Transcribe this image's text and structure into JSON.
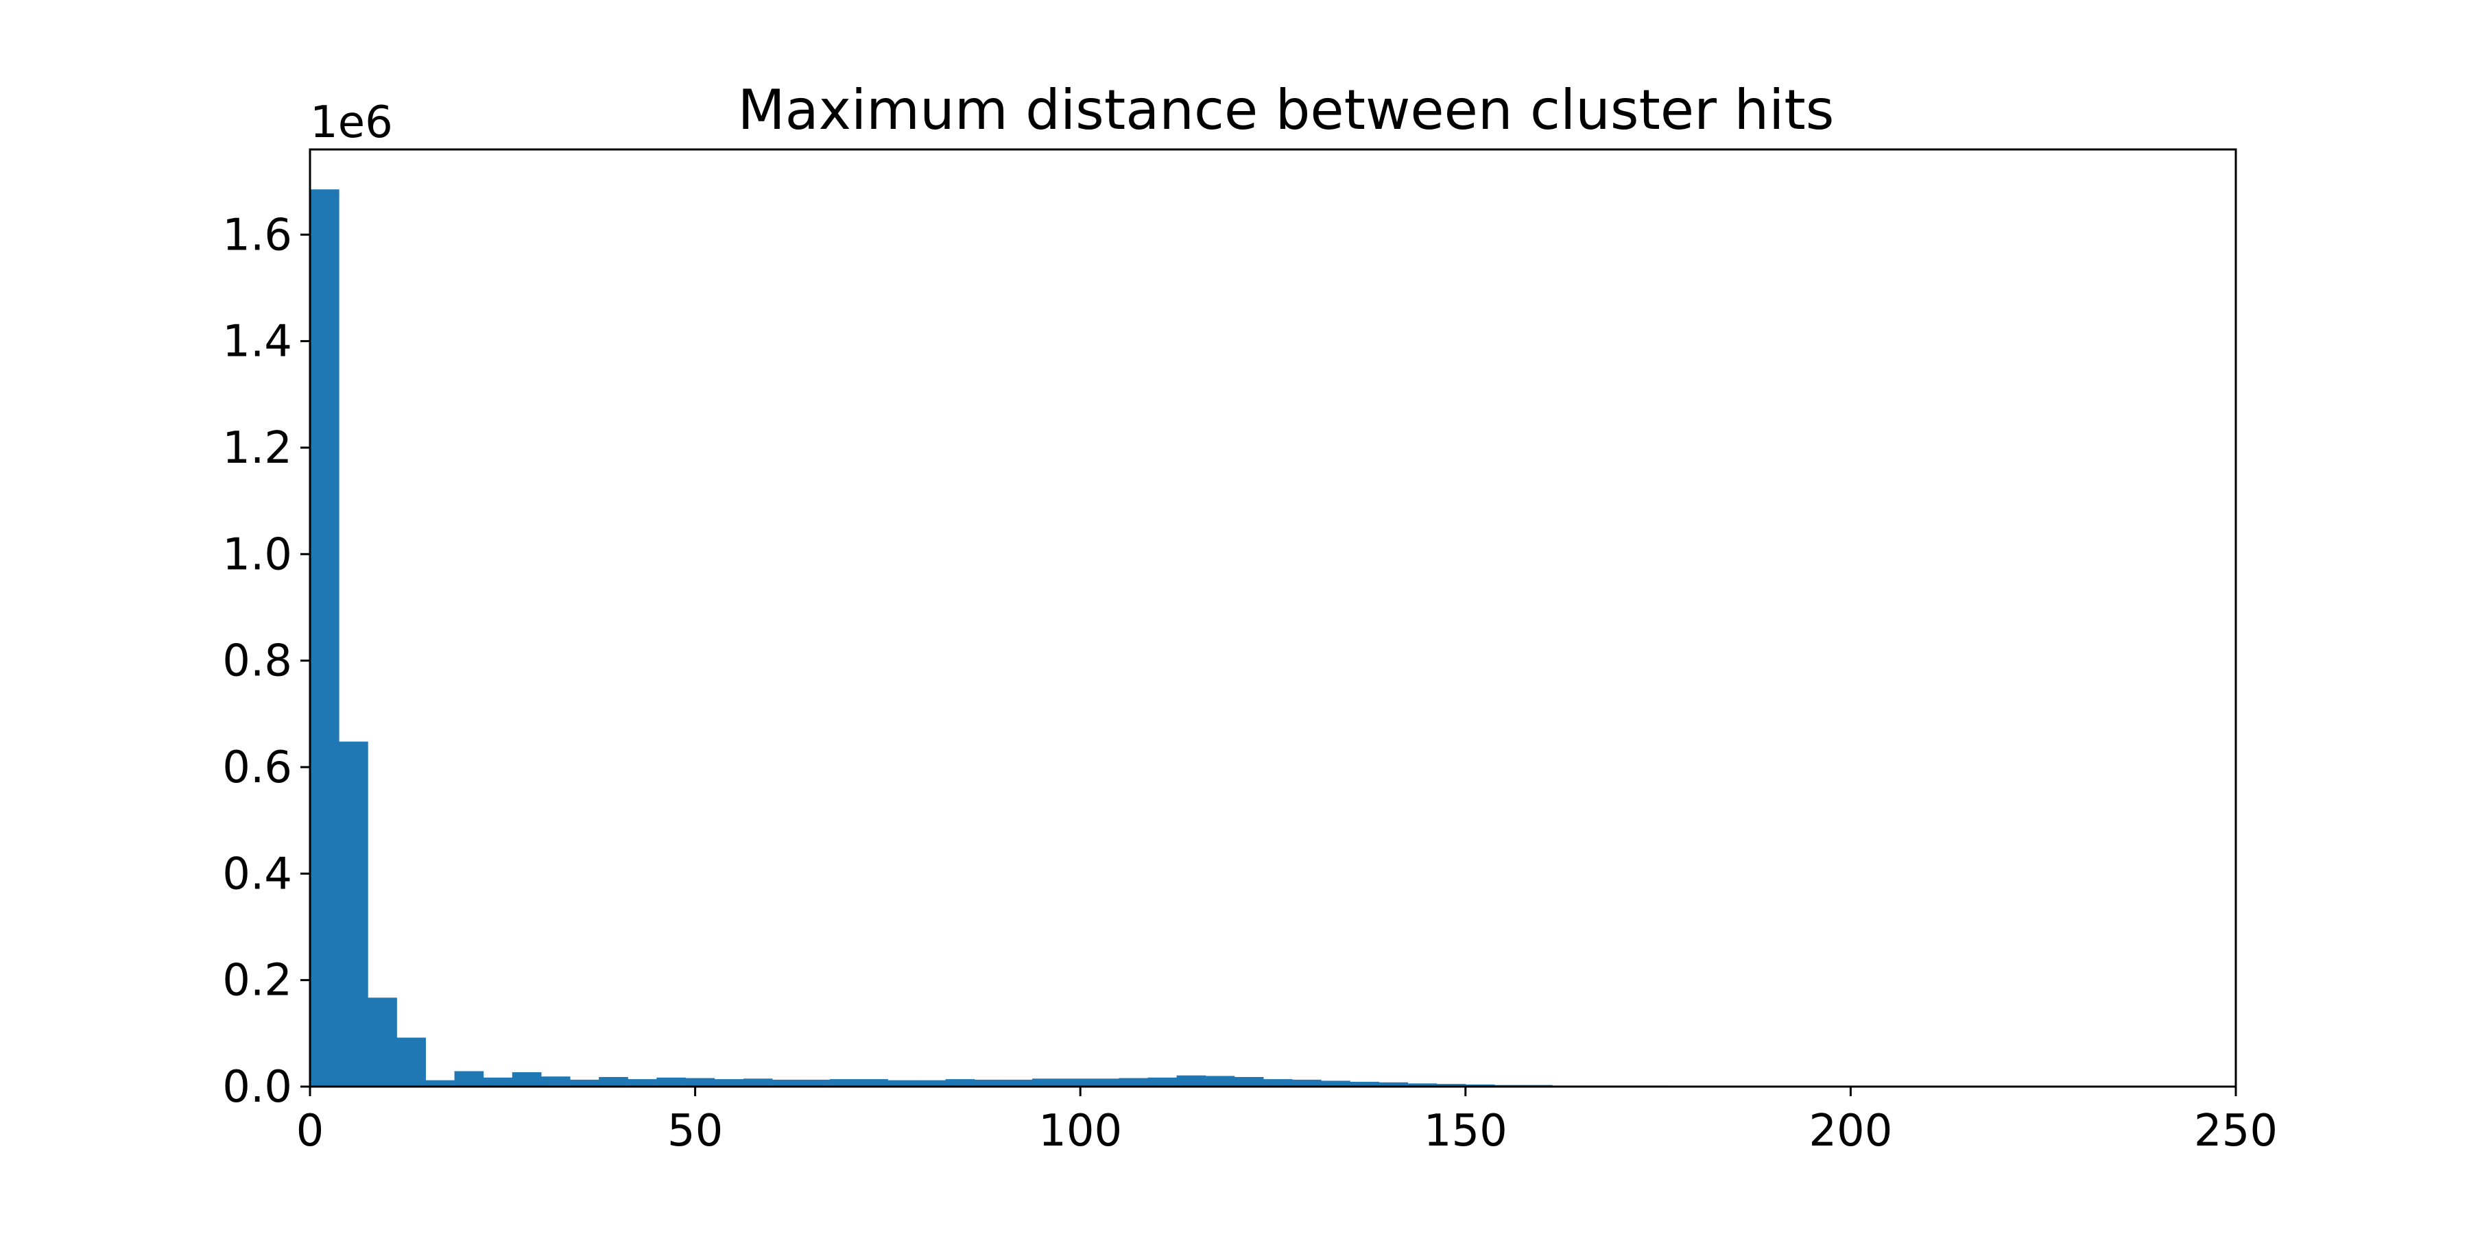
{
  "chart_data": {
    "type": "bar",
    "title": "Maximum distance between cluster hits",
    "xlabel": "",
    "ylabel": "",
    "y_offset_label": "1e6",
    "xlim": [
      0,
      250
    ],
    "ylim": [
      0,
      1.76
    ],
    "x_ticks": [
      0,
      50,
      100,
      150,
      200,
      250
    ],
    "y_ticks": [
      0.0,
      0.2,
      0.4,
      0.6,
      0.8,
      1.0,
      1.2,
      1.4,
      1.6
    ],
    "x_tick_labels": [
      "0",
      "50",
      "100",
      "150",
      "200",
      "250"
    ],
    "y_tick_labels": [
      "0.0",
      "0.2",
      "0.4",
      "0.6",
      "0.8",
      "1.0",
      "1.2",
      "1.4",
      "1.6"
    ],
    "grid": false,
    "bar_color": "#1f77b4",
    "bin_width": 3.75,
    "bin_edges_start": 0,
    "values": [
      1.685,
      0.648,
      0.167,
      0.092,
      0.012,
      0.029,
      0.017,
      0.027,
      0.019,
      0.013,
      0.018,
      0.014,
      0.017,
      0.016,
      0.014,
      0.015,
      0.013,
      0.013,
      0.014,
      0.014,
      0.012,
      0.012,
      0.014,
      0.013,
      0.013,
      0.015,
      0.015,
      0.015,
      0.016,
      0.017,
      0.021,
      0.02,
      0.018,
      0.014,
      0.013,
      0.011,
      0.009,
      0.008,
      0.006,
      0.005,
      0.004,
      0.003,
      0.003,
      0.002,
      0.002,
      0.002,
      0.002,
      0.001,
      0.001,
      0.001,
      0.001,
      0.001,
      0.001,
      0.001,
      0.001,
      0.001,
      0.001,
      0.001,
      0.0005,
      0.0005,
      0.0005,
      0.0005,
      0.0005,
      0.0005,
      0.0005,
      0.0005
    ]
  }
}
